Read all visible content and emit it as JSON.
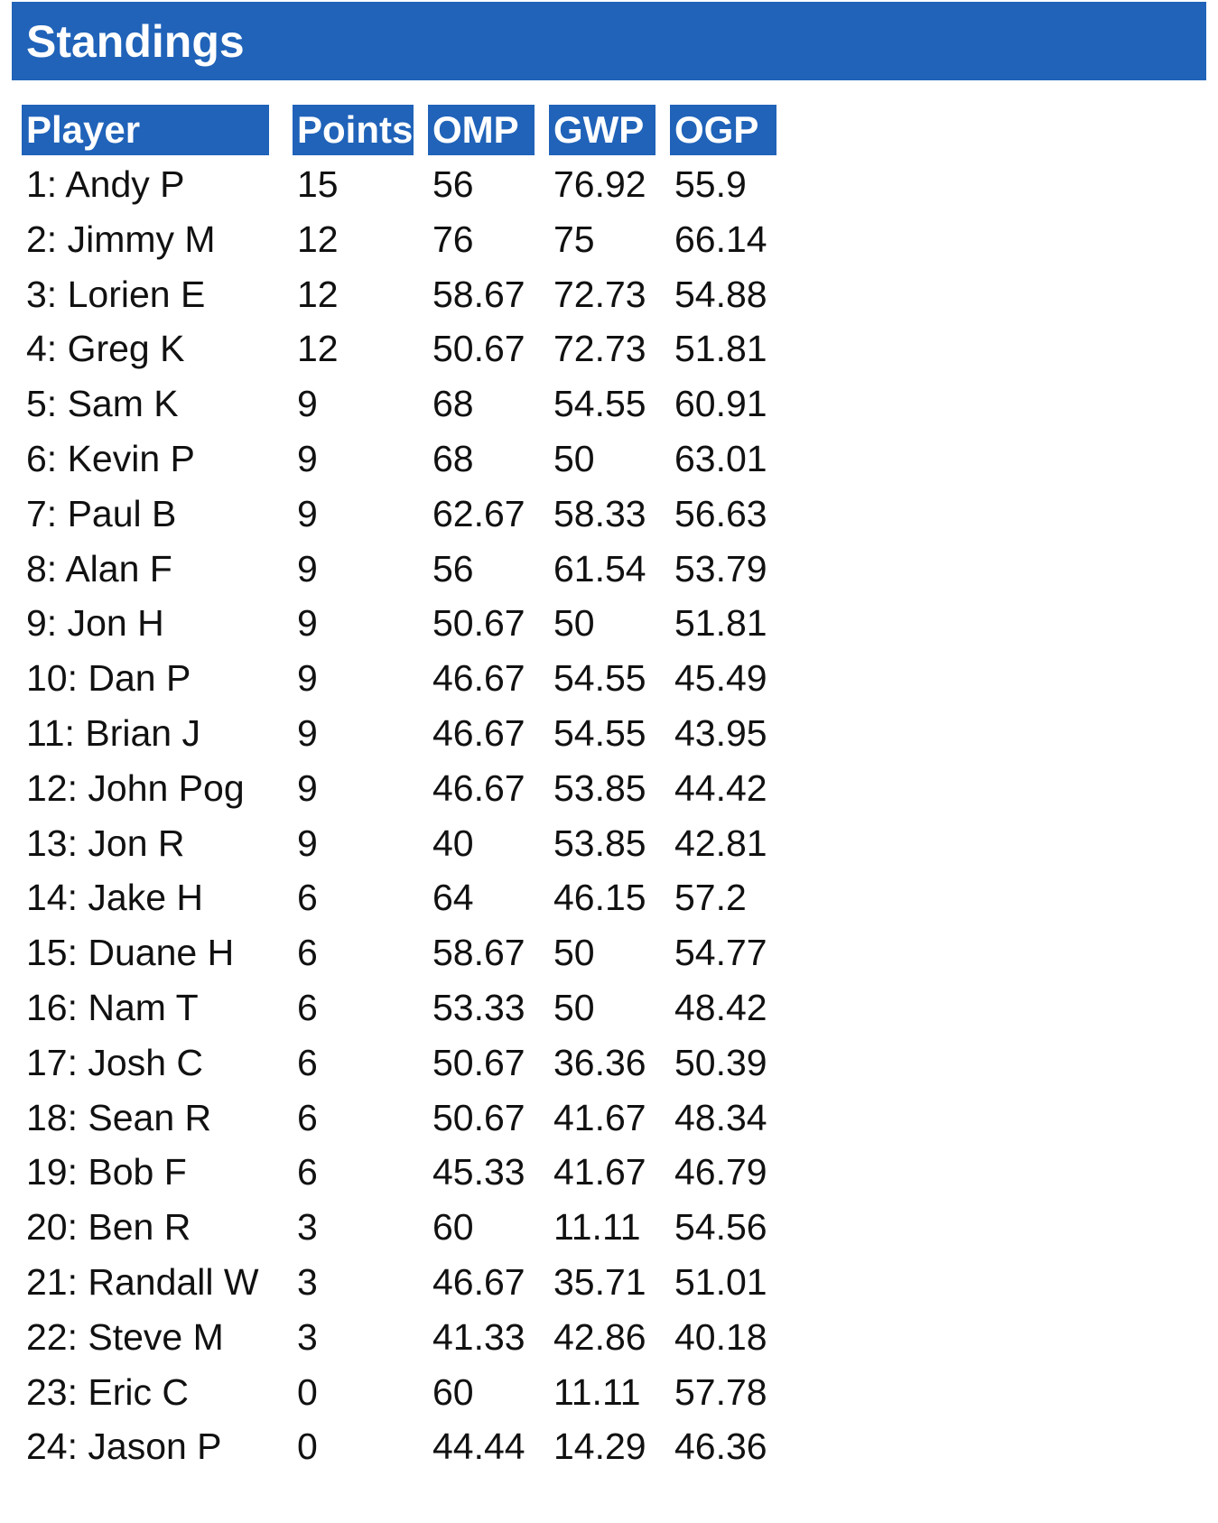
{
  "header": {
    "title": "Standings"
  },
  "table": {
    "columns": [
      "Player",
      "Points",
      "OMP",
      "GWP",
      "OGP"
    ],
    "rows": [
      [
        "1: Andy P",
        "15",
        "56",
        "76.92",
        "55.9"
      ],
      [
        "2: Jimmy M",
        "12",
        "76",
        "75",
        "66.14"
      ],
      [
        "3: Lorien E",
        "12",
        "58.67",
        "72.73",
        "54.88"
      ],
      [
        "4: Greg K",
        "12",
        "50.67",
        "72.73",
        "51.81"
      ],
      [
        "5: Sam K",
        "9",
        "68",
        "54.55",
        "60.91"
      ],
      [
        "6: Kevin P",
        "9",
        "68",
        "50",
        "63.01"
      ],
      [
        "7: Paul B",
        "9",
        "62.67",
        "58.33",
        "56.63"
      ],
      [
        "8: Alan F",
        "9",
        "56",
        "61.54",
        "53.79"
      ],
      [
        "9: Jon H",
        "9",
        "50.67",
        "50",
        "51.81"
      ],
      [
        "10: Dan P",
        "9",
        "46.67",
        "54.55",
        "45.49"
      ],
      [
        "11: Brian J",
        "9",
        "46.67",
        "54.55",
        "43.95"
      ],
      [
        "12: John Pog",
        "9",
        "46.67",
        "53.85",
        "44.42"
      ],
      [
        "13: Jon R",
        "9",
        "40",
        "53.85",
        "42.81"
      ],
      [
        "14: Jake H",
        "6",
        "64",
        "46.15",
        "57.2"
      ],
      [
        "15: Duane H",
        "6",
        "58.67",
        "50",
        "54.77"
      ],
      [
        "16: Nam T",
        "6",
        "53.33",
        "50",
        "48.42"
      ],
      [
        "17: Josh C",
        "6",
        "50.67",
        "36.36",
        "50.39"
      ],
      [
        "18: Sean R",
        "6",
        "50.67",
        "41.67",
        "48.34"
      ],
      [
        "19: Bob F",
        "6",
        "45.33",
        "41.67",
        "46.79"
      ],
      [
        "20: Ben R",
        "3",
        "60",
        "11.11",
        "54.56"
      ],
      [
        "21: Randall W",
        "3",
        "46.67",
        "35.71",
        "51.01"
      ],
      [
        "22: Steve M",
        "3",
        "41.33",
        "42.86",
        "40.18"
      ],
      [
        "23: Eric C",
        "0",
        "60",
        "11.11",
        "57.78"
      ],
      [
        "24: Jason P",
        "0",
        "44.44",
        "14.29",
        "46.36"
      ]
    ]
  },
  "colors": {
    "header_bg": "#2063b9",
    "header_text": "#ffffff",
    "body_text": "#111111"
  }
}
